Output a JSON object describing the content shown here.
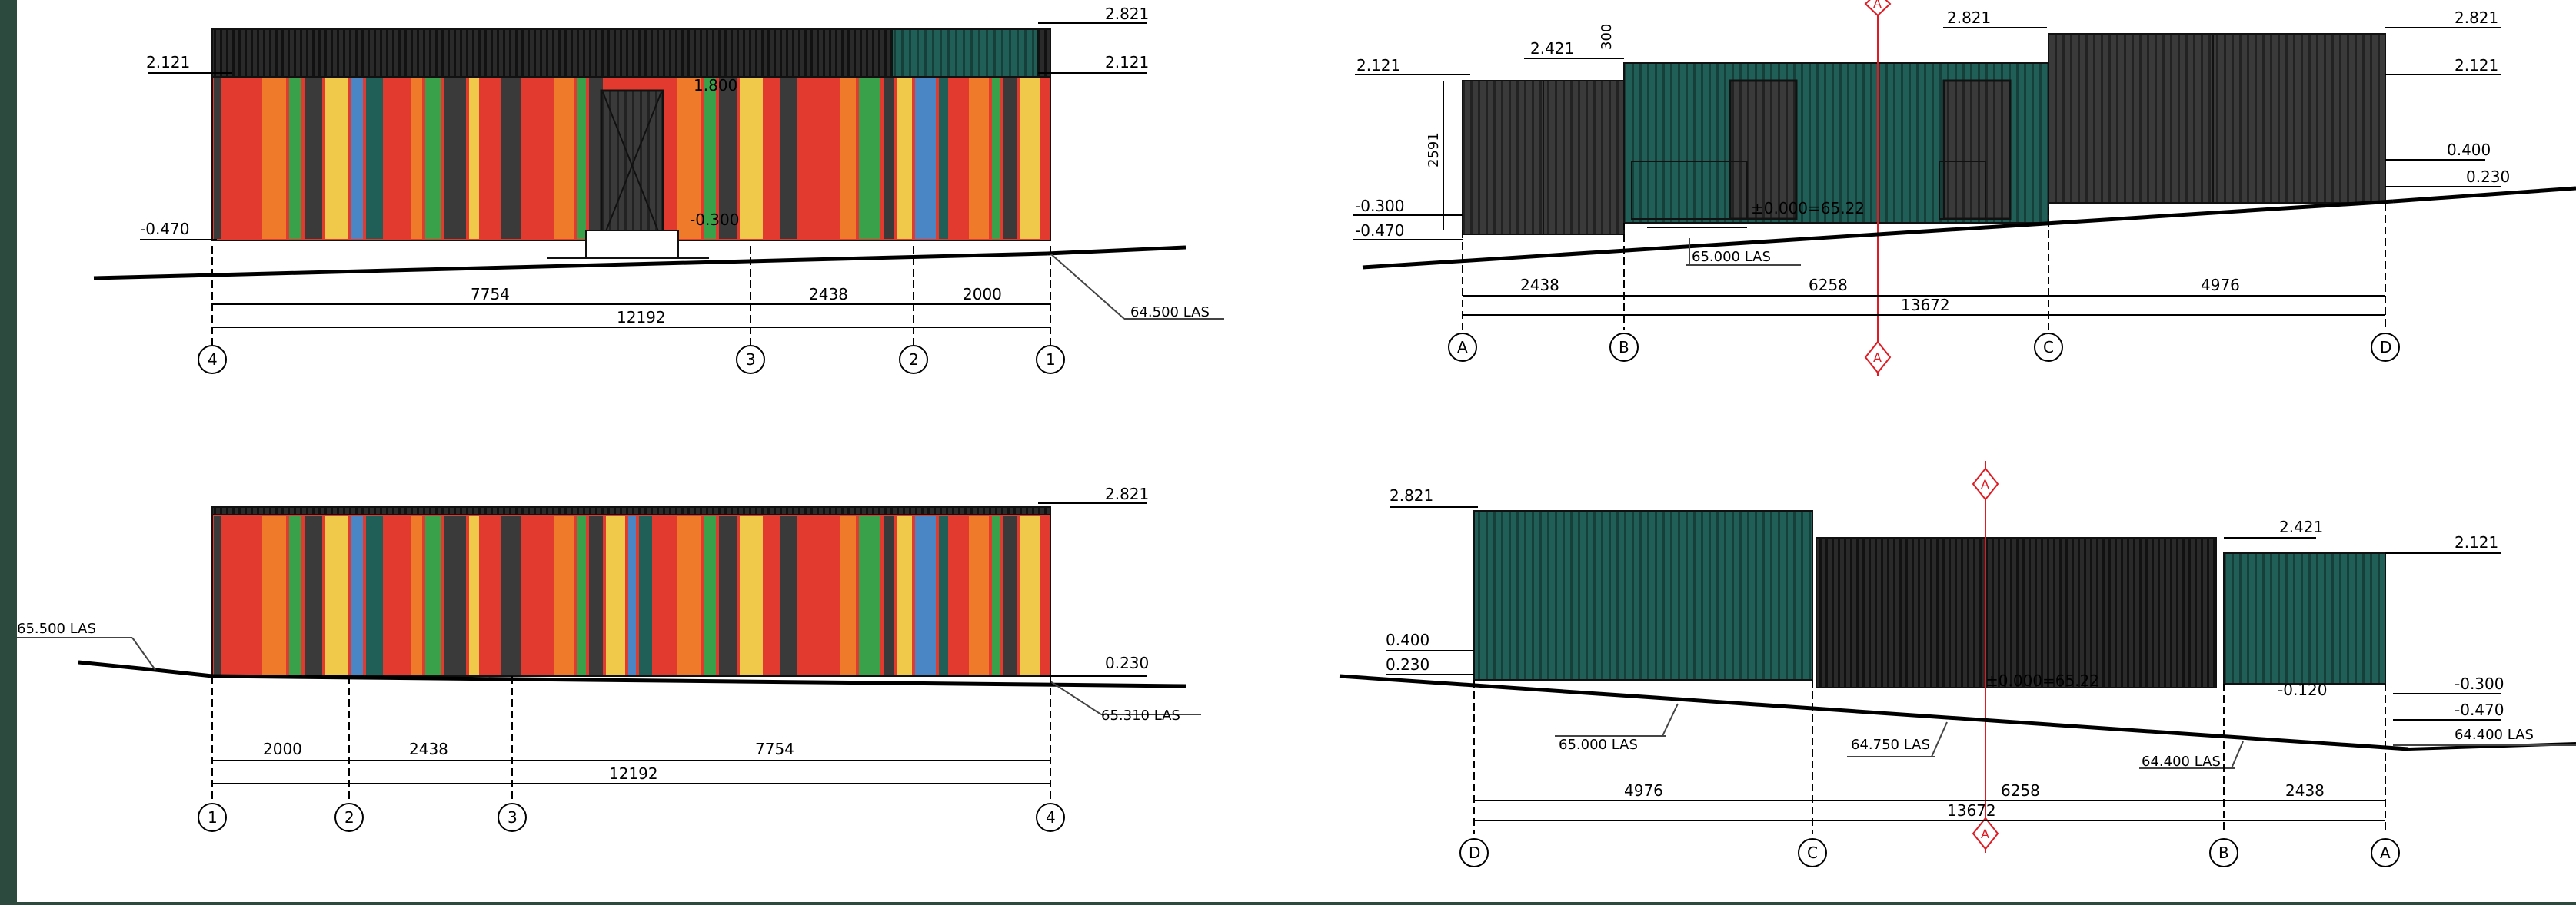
{
  "colors": {
    "frame": "#2c4a3e",
    "teal": "#1f5f58",
    "dark": "#3a3a3a",
    "red": "#e23a2e",
    "orange": "#ee7a2a",
    "green": "#3aa14b",
    "yellow": "#f0c94a",
    "blue": "#4a86c5",
    "section_line": "#e01b24"
  },
  "view1": {
    "levels": {
      "top": "2.821",
      "mid": "2.121",
      "ground": "-0.470",
      "door_head": "1.800",
      "door_sill": "-0.300"
    },
    "ground_label": "64.500 LAS",
    "dims": {
      "a": "7754",
      "b": "2438",
      "c": "2000",
      "total": "12192"
    },
    "grids": [
      "4",
      "3",
      "2",
      "1"
    ]
  },
  "view2": {
    "levels": {
      "top": "2.821",
      "top_mid": "2.121",
      "roof_b": "2.421",
      "left_top": "2.121",
      "parapet": "300",
      "height": "2591",
      "step1": "-0.300",
      "step2": "-0.470",
      "right1": "0.400",
      "right2": "0.230",
      "zero": "±0.000=65.22",
      "roof_mid": "2.821"
    },
    "ground_label": "65.000 LAS",
    "dims": {
      "a": "2438",
      "b": "6258",
      "c": "4976",
      "total": "13672"
    },
    "grids": [
      "A",
      "B",
      "C",
      "D"
    ],
    "section_mark": "A"
  },
  "view3": {
    "levels": {
      "top": "2.821",
      "right": "0.230"
    },
    "ground_left": "65.500 LAS",
    "ground_right": "65.310 LAS",
    "dims": {
      "a": "2000",
      "b": "2438",
      "c": "7754",
      "total": "12192"
    },
    "grids": [
      "1",
      "2",
      "3",
      "4"
    ]
  },
  "view4": {
    "levels": {
      "top_left": "2.821",
      "mid": "2.421",
      "right": "2.121",
      "l1": "0.400",
      "l2": "0.230",
      "r1": "-0.300",
      "r2": "-0.470",
      "r3": "-0.120",
      "zero": "±0.000=65.22"
    },
    "ground_labels": {
      "g1": "65.000 LAS",
      "g2": "64.750 LAS",
      "g3": "64.400 LAS",
      "g4": "64.400 LAS"
    },
    "dims": {
      "a": "4976",
      "b": "6258",
      "c": "2438",
      "total": "13672"
    },
    "grids": [
      "D",
      "C",
      "B",
      "A"
    ],
    "section_mark": "A"
  }
}
